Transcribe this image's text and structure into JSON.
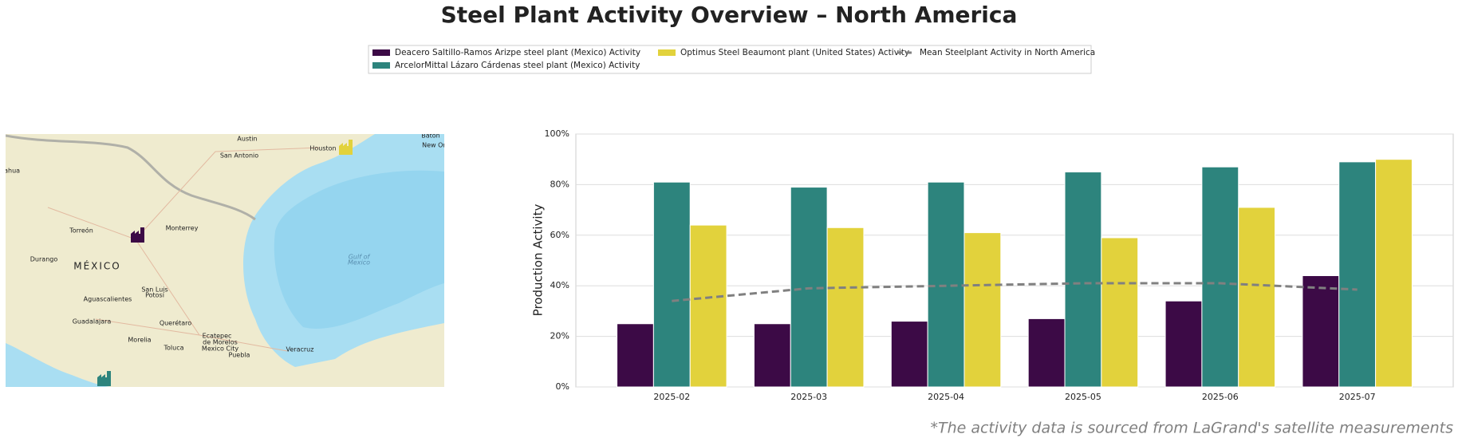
{
  "chart_data": {
    "type": "bar",
    "title": "Steel Plant Activity Overview – North America",
    "ylabel": "Production Activity",
    "footnote": "*The activity data is sourced from LaGrand's satellite measurements",
    "categories": [
      "2025-02",
      "2025-03",
      "2025-04",
      "2025-05",
      "2025-06",
      "2025-07"
    ],
    "series": [
      {
        "name": "Deacero Saltillo-Ramos Arizpe steel plant (Mexico) Activity",
        "color": "#3c0a46",
        "values": [
          25,
          25,
          26,
          27,
          34,
          44
        ]
      },
      {
        "name": "ArcelorMittal Lázaro Cárdenas steel plant (Mexico) Activity",
        "color": "#2d847d",
        "values": [
          81,
          79,
          81,
          85,
          87,
          89
        ]
      },
      {
        "name": "Optimus Steel Beaumont plant (United States) Activity",
        "color": "#e2d23c",
        "values": [
          64,
          63,
          61,
          59,
          71,
          90
        ]
      },
      {
        "name": "Mean Steelplant Activity in North America",
        "color": "#808080",
        "type": "line",
        "dashed": true,
        "values": [
          34,
          39,
          40,
          41,
          41,
          38.5
        ]
      }
    ],
    "ylim": [
      0,
      100
    ],
    "yticks": [
      {
        "value": 0,
        "label": "0%"
      },
      {
        "value": 20,
        "label": "20%"
      },
      {
        "value": 40,
        "label": "40%"
      },
      {
        "value": 60,
        "label": "60%"
      },
      {
        "value": 80,
        "label": "80%"
      },
      {
        "value": 100,
        "label": "100%"
      }
    ],
    "grid": true
  },
  "map": {
    "labels": [
      "Austin",
      "San Antonio",
      "Houston",
      "Baton",
      "New Orl",
      "huahua",
      "Torreón",
      "Monterrey",
      "Durango",
      "MÉXICO",
      "Gulf of",
      "Mexico",
      "San Luis",
      "Potosí",
      "Aguascalientes",
      "Guadalajara",
      "Querétaro",
      "Morelia",
      "Ecatepec",
      "de Morelos",
      "Toluca",
      "Mexico City",
      "Puebla",
      "Veracruz"
    ]
  }
}
